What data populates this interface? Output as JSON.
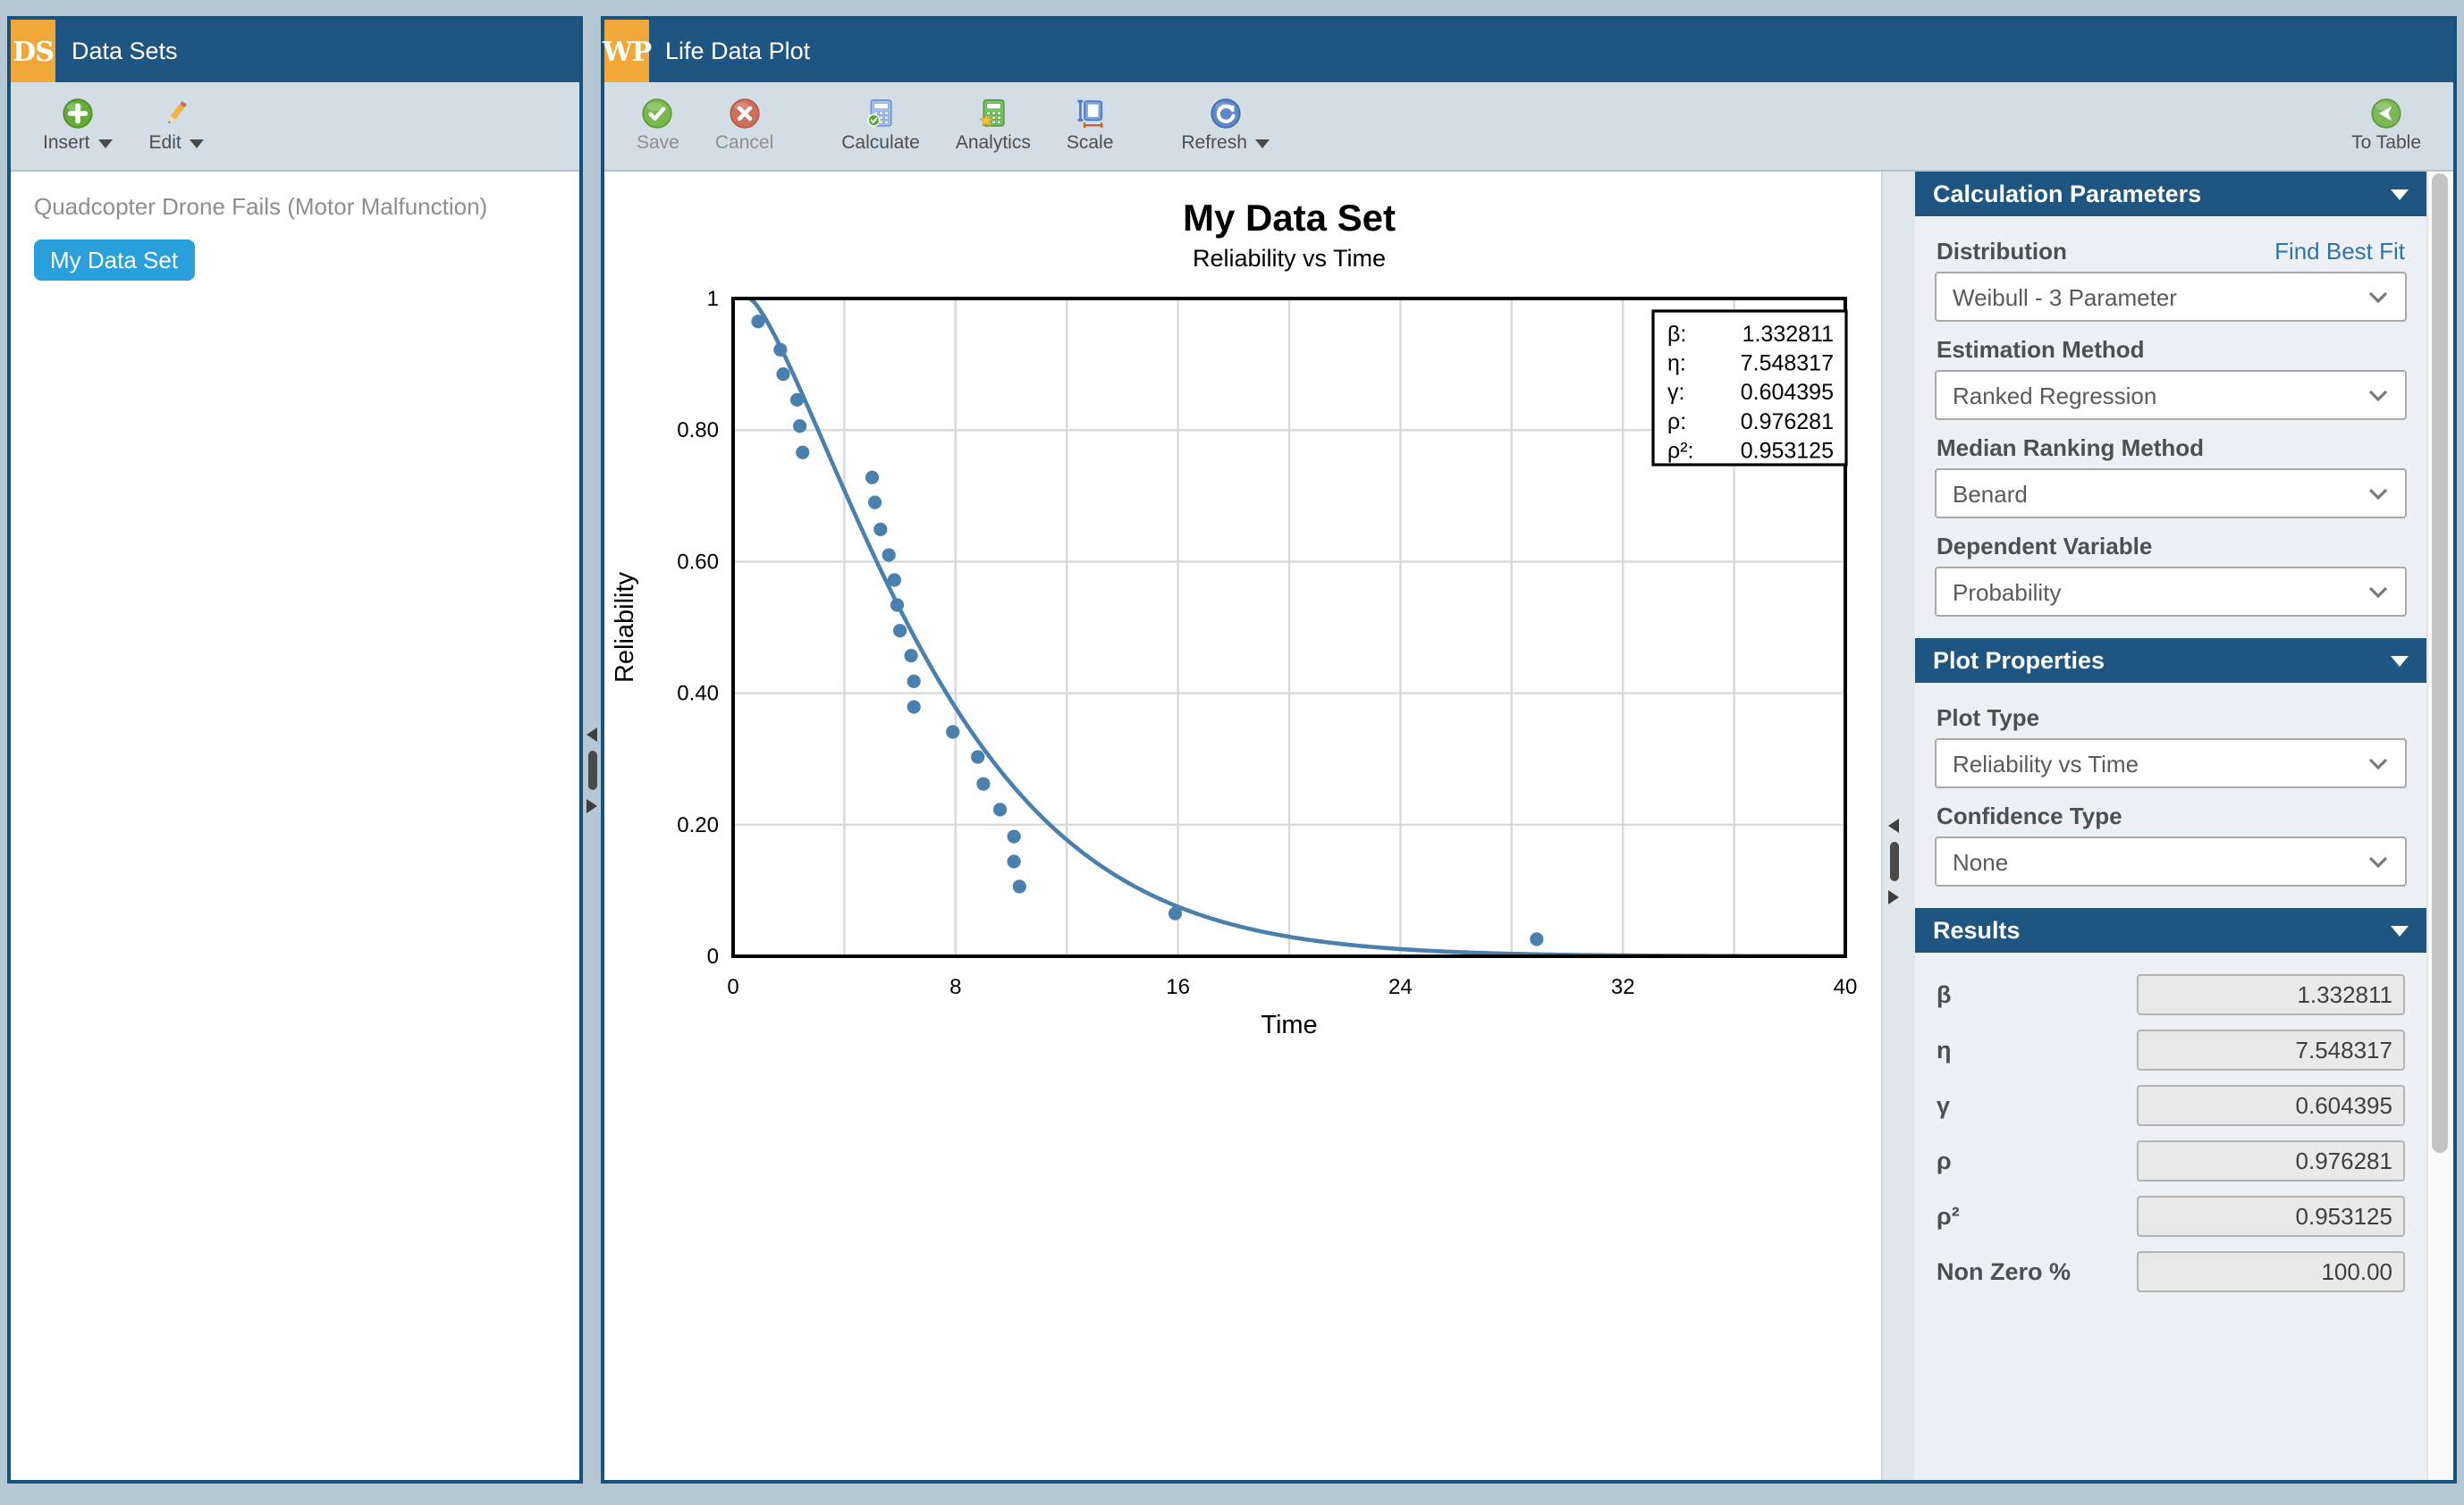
{
  "window_left": {
    "logo": "DS",
    "title": "Data Sets",
    "toolbar": {
      "insert": "Insert",
      "edit": "Edit"
    },
    "items": [
      {
        "label": "Quadcopter Drone Fails (Motor Malfunction)",
        "selected": false
      },
      {
        "label": "My Data Set",
        "selected": true
      }
    ]
  },
  "window_plot": {
    "logo": "WP",
    "title": "Life Data Plot",
    "toolbar": {
      "save": "Save",
      "cancel": "Cancel",
      "calculate": "Calculate",
      "analytics": "Analytics",
      "scale": "Scale",
      "refresh": "Refresh",
      "to_table": "To Table"
    }
  },
  "chart_data": {
    "type": "scatter",
    "title": "My Data Set",
    "subtitle": "Reliability vs Time",
    "xlabel": "Time",
    "ylabel": "Reliability",
    "xlim": [
      0,
      40
    ],
    "ylim": [
      0,
      1
    ],
    "x_ticks": [
      0,
      8,
      16,
      24,
      32,
      40
    ],
    "x_grid_step": 4,
    "y_ticks": [
      {
        "value": 1.0,
        "label": "1"
      },
      {
        "value": 0.8,
        "label": "0.80"
      },
      {
        "value": 0.6,
        "label": "0.60"
      },
      {
        "value": 0.4,
        "label": "0.40"
      },
      {
        "value": 0.2,
        "label": "0.20"
      },
      {
        "value": 0.0,
        "label": "0"
      }
    ],
    "grid": true,
    "points": [
      [
        0.9,
        0.965
      ],
      [
        1.7,
        0.922
      ],
      [
        1.8,
        0.885
      ],
      [
        2.3,
        0.846
      ],
      [
        2.4,
        0.806
      ],
      [
        2.5,
        0.766
      ],
      [
        5.0,
        0.728
      ],
      [
        5.1,
        0.69
      ],
      [
        5.3,
        0.649
      ],
      [
        5.6,
        0.61
      ],
      [
        5.8,
        0.572
      ],
      [
        5.9,
        0.534
      ],
      [
        6.0,
        0.495
      ],
      [
        6.4,
        0.457
      ],
      [
        6.5,
        0.418
      ],
      [
        6.5,
        0.379
      ],
      [
        7.9,
        0.341
      ],
      [
        8.8,
        0.303
      ],
      [
        9.0,
        0.262
      ],
      [
        9.6,
        0.223
      ],
      [
        10.1,
        0.182
      ],
      [
        10.1,
        0.144
      ],
      [
        10.3,
        0.106
      ],
      [
        15.9,
        0.065
      ],
      [
        28.9,
        0.026
      ]
    ],
    "fit": {
      "type": "weibull-3-parameter",
      "beta": 1.332811,
      "eta": 7.548317,
      "gamma": 0.604395
    },
    "legend_position": "top-right",
    "legend": [
      {
        "label": "β:",
        "value": "1.332811"
      },
      {
        "label": "η:",
        "value": "7.548317"
      },
      {
        "label": "γ:",
        "value": "0.604395"
      },
      {
        "label": "ρ:",
        "value": "0.976281"
      },
      {
        "label": "ρ²:",
        "value": "0.953125"
      }
    ],
    "colors": {
      "series": "#4A80AD",
      "grid": "#D9D9D9",
      "plot_border": "#000000"
    }
  },
  "sidebar": {
    "calculation_parameters": {
      "title": "Calculation Parameters",
      "link": "Find Best Fit",
      "fields": [
        {
          "label": "Distribution",
          "value": "Weibull - 3 Parameter"
        },
        {
          "label": "Estimation Method",
          "value": "Ranked Regression"
        },
        {
          "label": "Median Ranking Method",
          "value": "Benard"
        },
        {
          "label": "Dependent Variable",
          "value": "Probability"
        }
      ]
    },
    "plot_properties": {
      "title": "Plot Properties",
      "fields": [
        {
          "label": "Plot Type",
          "value": "Reliability vs Time"
        },
        {
          "label": "Confidence Type",
          "value": "None"
        }
      ]
    },
    "results": {
      "title": "Results",
      "rows": [
        {
          "label": "β",
          "value": "1.332811"
        },
        {
          "label": "η",
          "value": "7.548317"
        },
        {
          "label": "γ",
          "value": "0.604395"
        },
        {
          "label": "ρ",
          "value": "0.976281"
        },
        {
          "label": "ρ²",
          "value": "0.953125"
        },
        {
          "label": "Non Zero %",
          "value": "100.00"
        }
      ]
    }
  },
  "ui_colors": {
    "header_blue": "#1E5581",
    "logo_orange": "#F2A838",
    "selected_pill_blue": "#29A0DC"
  }
}
